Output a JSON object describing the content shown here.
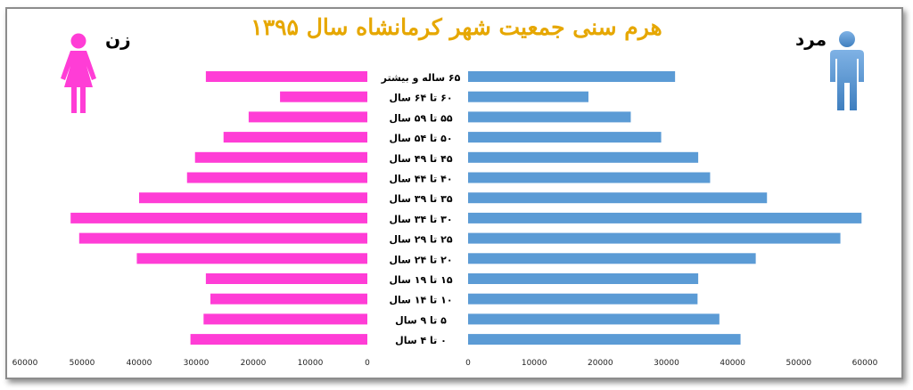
{
  "chart_data": {
    "type": "bar",
    "title": "هرم سنی جمعیت شهر کرمانشاه سال ۱۳۹۵",
    "left_label": "زن",
    "right_label": "مرد",
    "categories": [
      "۶۵ ساله و بیشتر",
      "۶۰ تا ۶۴ سال",
      "۵۵ تا ۵۹ سال",
      "۵۰ تا ۵۴ سال",
      "۴۵ تا ۴۹ سال",
      "۴۰ تا ۴۴ سال",
      "۳۵ تا ۳۹ سال",
      "۳۰ تا ۳۴ سال",
      "۲۵ تا ۲۹ سال",
      "۲۰ تا ۲۴ سال",
      "۱۵ تا ۱۹ سال",
      "۱۰ تا ۱۴ سال",
      "۵ تا ۹ سال",
      "۰ تا ۴ سال"
    ],
    "series": [
      {
        "name": "زن",
        "color": "#ff3dd6",
        "values": [
          28300,
          15300,
          20800,
          25200,
          30200,
          31600,
          40000,
          52000,
          50500,
          40400,
          28300,
          27500,
          28700,
          31000
        ]
      },
      {
        "name": "مرد",
        "color": "#5b9bd5",
        "values": [
          31300,
          18200,
          24600,
          29200,
          34800,
          36600,
          45200,
          59500,
          56300,
          43500,
          34800,
          34700,
          38000,
          41200
        ]
      }
    ],
    "left_ticks": [
      "60000",
      "50000",
      "40000",
      "30000",
      "20000",
      "10000",
      "0"
    ],
    "right_ticks": [
      "0",
      "10000",
      "20000",
      "30000",
      "40000",
      "50000",
      "60000"
    ],
    "xlim": [
      0,
      60000
    ]
  },
  "colors": {
    "title": "#e6a700",
    "female": "#ff3dd6",
    "male": "#5b9bd5"
  },
  "icons": {
    "female": "woman-icon",
    "male": "man-icon"
  }
}
